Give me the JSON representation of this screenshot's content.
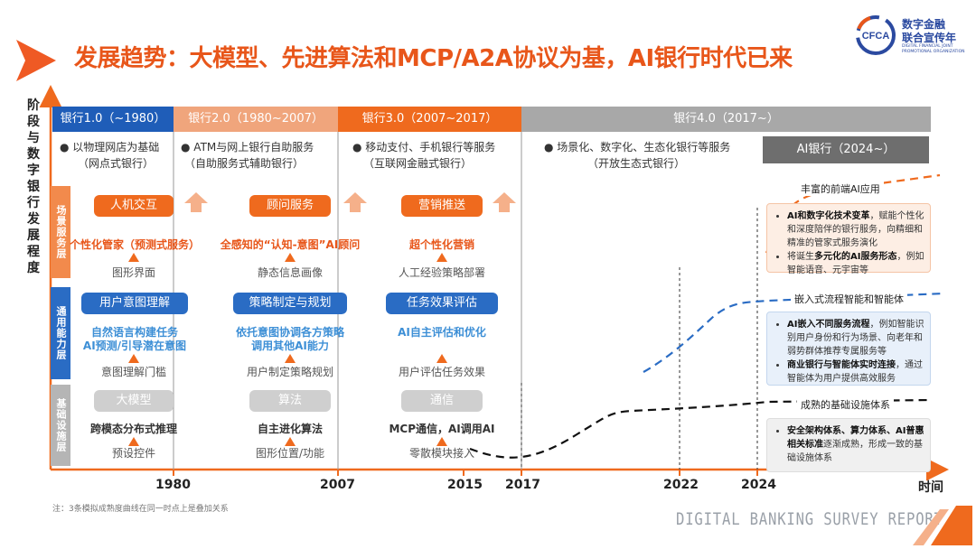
{
  "title": "发展趋势：大模型、先进算法和MCP/A2A协议为基，AI银行时代已来",
  "logo": {
    "abbr": "CFCA",
    "name_line1": "数字金融",
    "name_line2": "联合宣传年",
    "name_en": "DIGITAL FINANCIAL JOINT PROMOTIONAL ORGANIZATION"
  },
  "axis": {
    "vertical_label": [
      "阶",
      "段",
      "与",
      "数",
      "字",
      "银",
      "行",
      "发",
      "展",
      "程",
      "度"
    ],
    "horizontal_label": "时间",
    "years": [
      "1980",
      "2007",
      "2015",
      "2017",
      "2022",
      "2024"
    ]
  },
  "eras": [
    {
      "label": "银行1.0（~1980）",
      "desc_line1": "● 以物理网店为基础",
      "desc_line2": "（网点式银行）"
    },
    {
      "label": "银行2.0（1980~2007）",
      "desc_line1": "● ATM与网上银行自助服务",
      "desc_line2": "（自助服务式辅助银行）"
    },
    {
      "label": "银行3.0（2007~2017）",
      "desc_line1": "● 移动支付、手机银行等服务",
      "desc_line2": "（互联网金融式银行）"
    },
    {
      "label": "银行4.0（2017~）",
      "desc_line1": "● 场景化、数字化、生态化银行等服务",
      "desc_line2": "（开放生态式银行）"
    }
  ],
  "ai_era": "AI银行（2024~）",
  "layers": {
    "scene": "场景服务层",
    "capability": "通用能力层",
    "foundation": "基础设施层"
  },
  "scene_cols": [
    {
      "pill": "人机交互",
      "highlight": "个性化管家（预测式服务）",
      "base": "图形界面"
    },
    {
      "pill": "顾问服务",
      "highlight": "全感知的“认知-意图”AI顾问",
      "base": "静态信息画像"
    },
    {
      "pill": "营销推送",
      "highlight": "超个性化营销",
      "base": "人工经验策略部署"
    }
  ],
  "cap_cols": [
    {
      "pill": "用户意图理解",
      "highlight1": "自然语言构建任务",
      "highlight2": "AI预测/引导潜在意图",
      "base": "意图理解门槛"
    },
    {
      "pill": "策略制定与规划",
      "highlight1": "依托意图协调各方策略",
      "highlight2": "调用其他AI能力",
      "base": "用户制定策略规划"
    },
    {
      "pill": "任务效果评估",
      "highlight1": "AI自主评估和优化",
      "highlight2": "",
      "base": "用户评估任务效果"
    }
  ],
  "found_cols": [
    {
      "pill": "大模型",
      "highlight": "跨模态分布式推理",
      "base": "预设控件"
    },
    {
      "pill": "算法",
      "highlight": "自主进化算法",
      "base": "图形位置/功能"
    },
    {
      "pill": "通信",
      "highlight": "MCP通信，AI调用AI",
      "base": "零散模块接入"
    }
  ],
  "curves": [
    {
      "name": "丰富的前端AI应用",
      "color": "#ef6a1e"
    },
    {
      "name": "嵌入式流程智能和智能体",
      "color": "#2a6cc4"
    },
    {
      "name": "成熟的基础设施体系",
      "color": "#111111"
    }
  ],
  "cards": {
    "c1_a_bold": "AI和数字化技术变革",
    "c1_a_rest": "，赋能个性化和深度陪伴的银行服务，向精细和精准的管家式服务演化",
    "c1_b_pre": "将诞生",
    "c1_b_bold": "多元化的AI服务形态",
    "c1_b_rest": "，例如智能语音、元宇宙等",
    "c2_a_bold": "AI嵌入不同服务流程",
    "c2_a_rest": "，例如智能识别用户身份和行为场景、向老年和弱势群体推荐专属服务等",
    "c2_b_bold": "商业银行与智能体实时连接",
    "c2_b_rest": "，通过智能体为用户提供高效服务",
    "c3_a_bold": "安全架构体系、算力体系、AI普惠相关标准",
    "c3_a_rest": "逐渐成熟，形成一致的基础设施体系"
  },
  "note": "注：3条模拟成熟度曲线在同一时点上是叠加关系",
  "report_title": "DIGITAL BANKING SURVEY REPORT"
}
